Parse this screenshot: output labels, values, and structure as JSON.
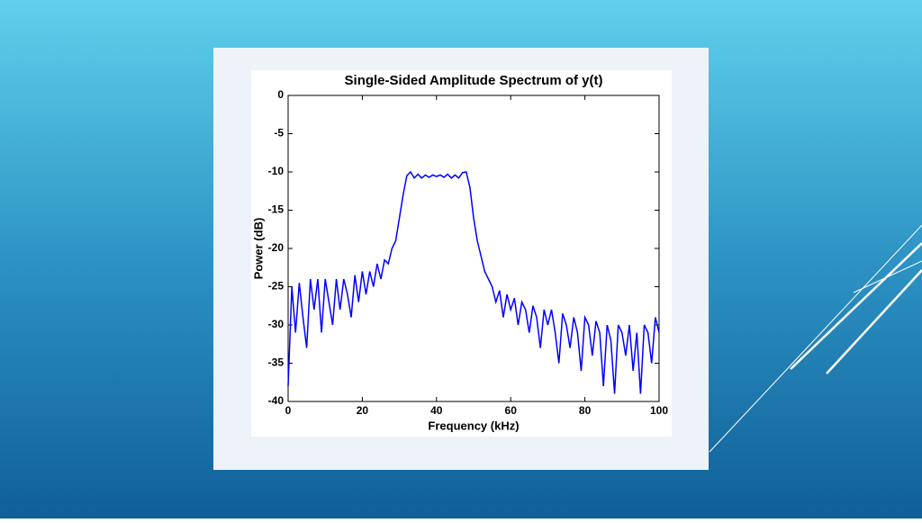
{
  "chart_data": {
    "type": "line",
    "title": "Single-Sided Amplitude Spectrum of y(t)",
    "x_label": "Frequency (kHz)",
    "y_label": "Power (dB)",
    "color": "#0000ff",
    "x": [
      0,
      1,
      2,
      3,
      4,
      5,
      6,
      7,
      8,
      9,
      10,
      11,
      12,
      13,
      14,
      15,
      16,
      17,
      18,
      19,
      20,
      21,
      22,
      23,
      24,
      25,
      26,
      27,
      28,
      29,
      30,
      31,
      32,
      33,
      34,
      35,
      36,
      37,
      38,
      39,
      40,
      41,
      42,
      43,
      44,
      45,
      46,
      47,
      48,
      49,
      50,
      51,
      52,
      53,
      54,
      55,
      56,
      57,
      58,
      59,
      60,
      61,
      62,
      63,
      64,
      65,
      66,
      67,
      68,
      69,
      70,
      71,
      72,
      73,
      74,
      75,
      76,
      77,
      78,
      79,
      80,
      81,
      82,
      83,
      84,
      85,
      86,
      87,
      88,
      89,
      90,
      91,
      92,
      93,
      94,
      95,
      96,
      97,
      98,
      99,
      100
    ],
    "values": [
      -38,
      -25,
      -31,
      -24.5,
      -29,
      -33,
      -24,
      -28,
      -24,
      -31,
      -24,
      -27,
      -30,
      -24,
      -28,
      -24,
      -26,
      -29,
      -23.5,
      -27,
      -23,
      -26,
      -23,
      -25,
      -22,
      -24,
      -21.5,
      -22,
      -20,
      -19,
      -16,
      -13,
      -10.5,
      -10,
      -10.8,
      -10.3,
      -10.8,
      -10.4,
      -10.7,
      -10.4,
      -10.6,
      -10.4,
      -10.7,
      -10.3,
      -10.8,
      -10.4,
      -10.8,
      -10.1,
      -10,
      -12,
      -16,
      -19,
      -21,
      -23,
      -24,
      -25,
      -27,
      -25.5,
      -29,
      -26,
      -28,
      -26.5,
      -30,
      -27,
      -28,
      -31,
      -27.5,
      -29,
      -33,
      -28,
      -30,
      -28,
      -31,
      -35,
      -28.5,
      -30,
      -33,
      -29,
      -31,
      -36,
      -29,
      -30,
      -34,
      -29.5,
      -31,
      -38,
      -30,
      -32,
      -39,
      -30,
      -31,
      -34,
      -30,
      -36,
      -31,
      -39,
      -30,
      -31,
      -35,
      -29,
      -31
    ],
    "xlim": [
      0,
      100
    ],
    "xticks": [
      0,
      20,
      40,
      60,
      80,
      100
    ],
    "ylim": [
      -40,
      0
    ],
    "yticks": [
      0,
      -5,
      -10,
      -15,
      -20,
      -25,
      -30,
      -35,
      -40
    ]
  }
}
